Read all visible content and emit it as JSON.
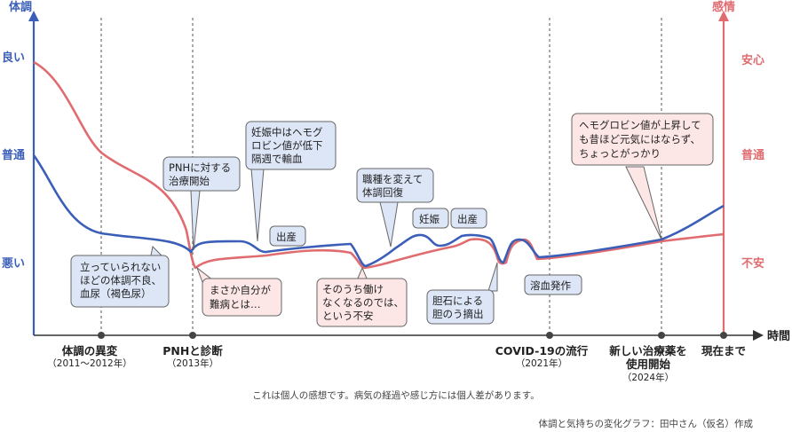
{
  "chart_data": {
    "type": "line",
    "left_axis": {
      "title": "体調",
      "ticks": [
        "良い",
        "普通",
        "悪い"
      ],
      "color": "#3b5fb8"
    },
    "right_axis": {
      "title": "感情",
      "ticks": [
        "安心",
        "普通",
        "不安"
      ],
      "color": "#e06c70"
    },
    "x_axis": {
      "title": "時間",
      "events": [
        {
          "label": "体調の異変",
          "sub": "（2011～2012年）"
        },
        {
          "label": "PNHと診断",
          "sub": "（2013年）"
        },
        {
          "label": "COVID-19の流行",
          "sub": "（2021年）"
        },
        {
          "label": "新しい治療薬を",
          "label2": "使用開始",
          "sub": "（2024年）"
        },
        {
          "label": "現在まで",
          "sub": ""
        }
      ]
    },
    "series": [
      {
        "name": "体調",
        "color": "#3b5fb8"
      },
      {
        "name": "感情",
        "color": "#e06c70"
      }
    ],
    "annotations": {
      "blue_1": [
        "立っていられない",
        "ほどの体調不良、",
        "血尿（褐色尿）"
      ],
      "blue_2": [
        "PNHに対する",
        "治療開始"
      ],
      "blue_3": [
        "妊娠中はヘモグ",
        "ロビン値が低下",
        "隔週で輸血"
      ],
      "blue_4": [
        "出産"
      ],
      "blue_5": [
        "職種を変えて",
        "体調回復"
      ],
      "blue_6": [
        "妊娠"
      ],
      "blue_7": [
        "出産"
      ],
      "blue_8": [
        "胆石による",
        "胆のう摘出"
      ],
      "blue_9": [
        "溶血発作"
      ],
      "red_1": [
        "まさか自分が",
        "難病とは…"
      ],
      "red_2": [
        "そのうち働け",
        "なくなるのでは、",
        "という不安"
      ],
      "red_3": [
        "ヘモグロビン値が上昇して",
        "も昔ほど元気にはならず、",
        "ちょっとがっかり"
      ]
    },
    "footnote": "これは個人の感想です。病気の経過や感じ方には個人差があります。",
    "credit": "体調と気持ちの変化グラフ：田中さん（仮名）作成"
  }
}
